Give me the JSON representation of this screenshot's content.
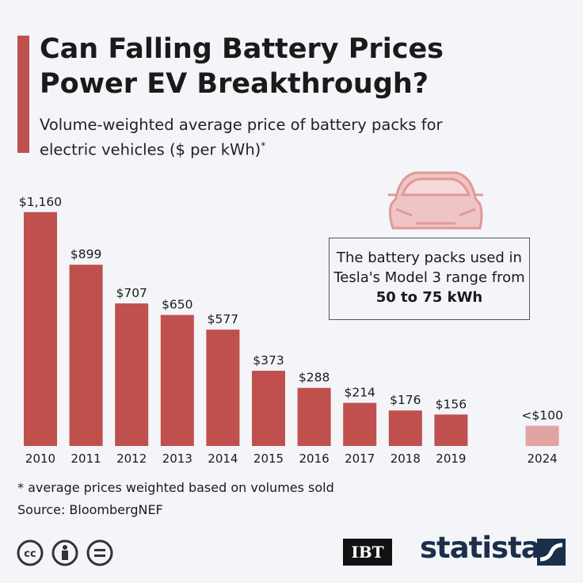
{
  "chart_data": {
    "type": "bar",
    "title": "Can Falling Battery Prices Power EV Breakthrough?",
    "subtitle": "Volume-weighted average price of battery packs for electric vehicles ($ per kWh)",
    "subtitle_note": "*",
    "categories": [
      "2010",
      "2011",
      "2012",
      "2013",
      "2014",
      "2015",
      "2016",
      "2017",
      "2018",
      "2019",
      null,
      "2024"
    ],
    "values": [
      1160,
      899,
      707,
      650,
      577,
      373,
      288,
      214,
      176,
      156,
      null,
      100
    ],
    "value_labels": [
      "$1,160",
      "$899",
      "$707",
      "$650",
      "$577",
      "$373",
      "$288",
      "$214",
      "$176",
      "$156",
      null,
      "<$100"
    ],
    "colors": [
      "#c0504d",
      "#c0504d",
      "#c0504d",
      "#c0504d",
      "#c0504d",
      "#c0504d",
      "#c0504d",
      "#c0504d",
      "#c0504d",
      "#c0504d",
      null,
      "#e2a3a3"
    ],
    "annotation": {
      "text": "The battery packs used in Tesla's Model 3 range from",
      "highlight": "50 to 75 kWh"
    },
    "footnote": "* average prices weighted based on volumes sold",
    "source": "Source: BloombergNEF",
    "logos": [
      "IBT",
      "statista"
    ]
  }
}
